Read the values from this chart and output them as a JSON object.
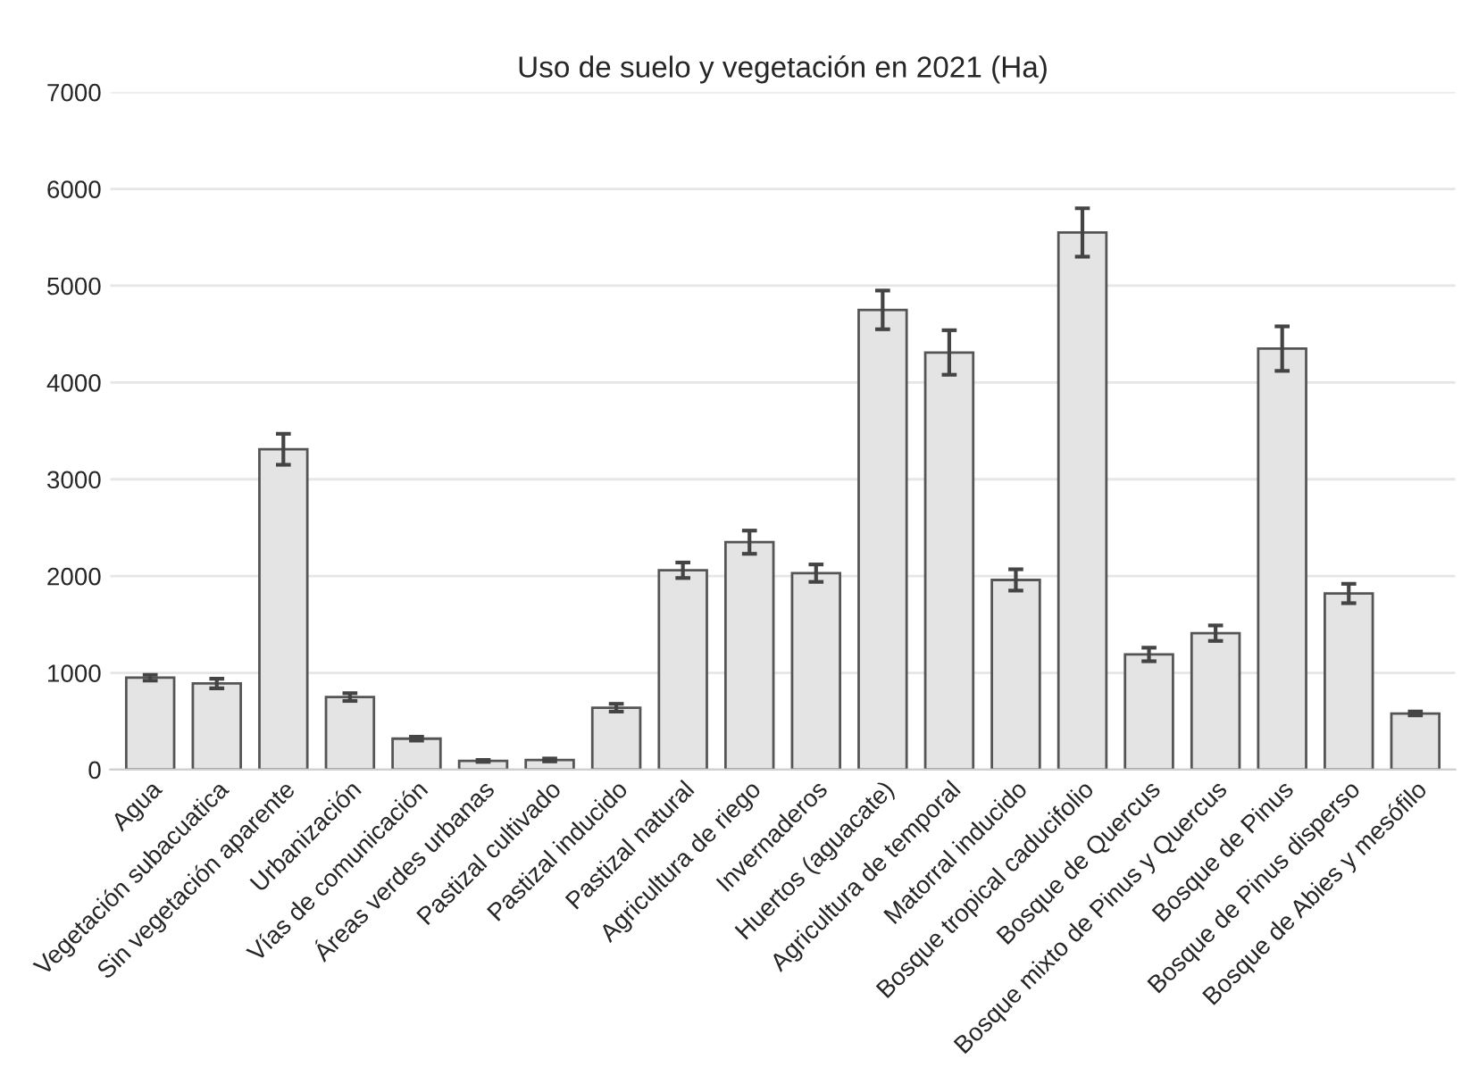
{
  "chart_data": {
    "type": "bar",
    "title": "Uso de suelo y vegetación en 2021 (Ha)",
    "categories": [
      "Agua",
      "Vegetación subacuatica",
      "Sin vegetación aparente",
      "Urbanización",
      "Vías de comunicación",
      "Áreas verdes urbanas",
      "Pastizal cultivado",
      "Pastizal inducido",
      "Pastizal natural",
      "Agricultura de riego",
      "Invernaderos",
      "Huertos (aguacate)",
      "Agricultura de temporal",
      "Matorral inducido",
      "Bosque tropical caducifolio",
      "Bosque de Quercus",
      "Bosque mixto de Pinus y Quercus",
      "Bosque de Pinus",
      "Bosque de Pinus disperso",
      "Bosque de Abies y mesófilo"
    ],
    "values": [
      950,
      890,
      3310,
      750,
      320,
      90,
      100,
      640,
      2060,
      2350,
      2030,
      4750,
      4310,
      1960,
      5550,
      1190,
      1410,
      4350,
      1820,
      580
    ],
    "errors": [
      30,
      50,
      160,
      40,
      20,
      10,
      15,
      40,
      80,
      120,
      90,
      200,
      230,
      110,
      250,
      70,
      80,
      230,
      100,
      20
    ],
    "color": "#e4e4e4",
    "ylim": [
      0,
      7000
    ],
    "yticks": [
      0,
      1000,
      2000,
      3000,
      4000,
      5000,
      6000,
      7000
    ],
    "grid": "y"
  }
}
